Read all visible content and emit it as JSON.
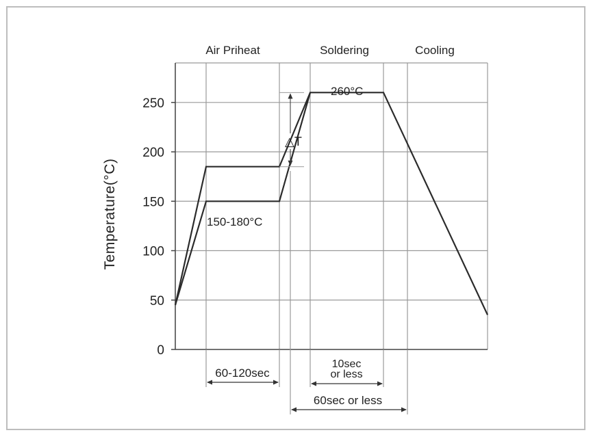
{
  "chart_data": {
    "type": "line",
    "title": "",
    "xlabel": "",
    "ylabel": "Temperature(°C)",
    "ylim": [
      0,
      290
    ],
    "y_ticks": [
      0,
      50,
      100,
      150,
      200,
      250
    ],
    "grid": true,
    "legend": "none",
    "phases": [
      "Air Priheat",
      "Soldering",
      "Cooling"
    ],
    "series": [
      {
        "x": [
          0,
          1,
          3.4,
          4.4,
          6.8,
          10
        ],
        "y": [
          45,
          185,
          185,
          260,
          260,
          35
        ]
      },
      {
        "x": [
          0,
          1,
          3.4,
          4.4
        ],
        "y": [
          45,
          150,
          150,
          260
        ]
      }
    ],
    "annotations": {
      "peak": "260°C",
      "preheat_range": "150-180°C",
      "delta": "△T",
      "preheat_time": "60-120sec",
      "soldering_time": [
        "10sec",
        "or less"
      ],
      "total_time": "60sec or less"
    },
    "colors": {
      "line": "#2b2b2b",
      "grid": "#999999",
      "frame": "#bdbdbd"
    }
  }
}
